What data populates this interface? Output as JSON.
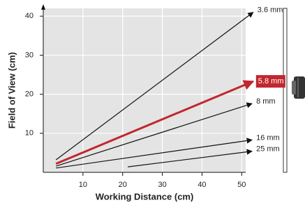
{
  "chart_data": {
    "type": "line",
    "xlabel": "Working Distance (cm)",
    "ylabel": "Field of View (cm)",
    "xlim": [
      0,
      51
    ],
    "ylim": [
      0,
      42
    ],
    "xticks": [
      10,
      20,
      30,
      40,
      50
    ],
    "yticks": [
      10,
      20,
      30,
      40
    ],
    "grid": true,
    "series": [
      {
        "name": "3.6 mm",
        "color": "#111111",
        "x": [
          3.2,
          52.9
        ],
        "values": [
          3.2,
          41
        ]
      },
      {
        "name": "5.8 mm",
        "color": "#c1272d",
        "highlight": true,
        "x": [
          3.2,
          52.9
        ],
        "values": [
          2.2,
          23.3
        ]
      },
      {
        "name": "8 mm",
        "color": "#111111",
        "x": [
          3.2,
          52.6
        ],
        "values": [
          1.6,
          17.6
        ]
      },
      {
        "name": "16 mm",
        "color": "#111111",
        "x": [
          3.2,
          52.6
        ],
        "values": [
          1.1,
          8.3
        ]
      },
      {
        "name": "25 mm",
        "color": "#111111",
        "x": [
          21.3,
          52.6
        ],
        "values": [
          1.4,
          5.4
        ]
      }
    ]
  }
}
